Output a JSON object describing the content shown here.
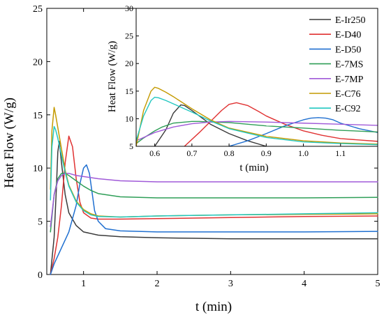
{
  "chart_data": {
    "type": "line",
    "xlabel": "t (min)",
    "ylabel": "Heat Flow (W/g)",
    "xlim": [
      0.5,
      5
    ],
    "ylim": [
      0,
      25
    ],
    "xticks": [
      1,
      2,
      3,
      4,
      5
    ],
    "yticks": [
      0,
      5,
      10,
      15,
      20,
      25
    ],
    "legend": "inside inset, top-right",
    "grid": false,
    "series": [
      {
        "name": "E-Ir250",
        "color": "#3a3a3a",
        "x": [
          0.55,
          0.6,
          0.63,
          0.65,
          0.67,
          0.7,
          0.75,
          0.8,
          0.9,
          1.0,
          1.2,
          1.5,
          2,
          2.5,
          3,
          3.5,
          4,
          4.5,
          5
        ],
        "y": [
          0,
          3.5,
          8,
          11.5,
          12.5,
          10.5,
          7.5,
          5.8,
          4.6,
          4.0,
          3.7,
          3.55,
          3.45,
          3.4,
          3.35,
          3.35,
          3.35,
          3.35,
          3.35
        ]
      },
      {
        "name": "E-D40",
        "color": "#e03232",
        "x": [
          0.55,
          0.6,
          0.65,
          0.7,
          0.75,
          0.8,
          0.85,
          0.9,
          0.95,
          1.0,
          1.1,
          1.2,
          1.5,
          2,
          3,
          4,
          5
        ],
        "y": [
          0,
          1.5,
          3.5,
          6.5,
          10.5,
          13.0,
          12.0,
          9.0,
          6.8,
          5.8,
          5.3,
          5.2,
          5.2,
          5.25,
          5.35,
          5.45,
          5.5
        ]
      },
      {
        "name": "E-D50",
        "color": "#1f6fd0",
        "x": [
          0.55,
          0.6,
          0.7,
          0.8,
          0.9,
          0.95,
          1.0,
          1.04,
          1.08,
          1.12,
          1.15,
          1.2,
          1.3,
          1.5,
          2,
          3,
          4,
          5
        ],
        "y": [
          0,
          1.0,
          2.5,
          4.0,
          6.5,
          8.5,
          10.0,
          10.3,
          9.5,
          7.5,
          6.0,
          5.0,
          4.3,
          4.1,
          4.0,
          4.0,
          4.0,
          4.05
        ]
      },
      {
        "name": "E-7MS",
        "color": "#2e9e57",
        "x": [
          0.55,
          0.6,
          0.65,
          0.7,
          0.75,
          0.8,
          0.9,
          1.0,
          1.1,
          1.2,
          1.5,
          2,
          3,
          4,
          5
        ],
        "y": [
          4.0,
          7.5,
          9.0,
          9.5,
          9.5,
          9.3,
          8.8,
          8.3,
          7.9,
          7.6,
          7.3,
          7.2,
          7.2,
          7.2,
          7.25
        ]
      },
      {
        "name": "E-7MP",
        "color": "#a05ad8",
        "x": [
          0.55,
          0.6,
          0.65,
          0.7,
          0.75,
          0.8,
          0.9,
          1.0,
          1.2,
          1.5,
          2,
          3,
          4,
          5
        ],
        "y": [
          4.5,
          7.5,
          8.8,
          9.3,
          9.5,
          9.5,
          9.3,
          9.2,
          9.0,
          8.8,
          8.7,
          8.7,
          8.7,
          8.7
        ]
      },
      {
        "name": "E-C76",
        "color": "#c49a00",
        "x": [
          0.55,
          0.57,
          0.6,
          0.62,
          0.65,
          0.7,
          0.75,
          0.8,
          0.9,
          1.0,
          1.1,
          1.2,
          1.5,
          2,
          3,
          4,
          5
        ],
        "y": [
          8.0,
          13.5,
          15.7,
          15.0,
          13.8,
          11.8,
          9.8,
          8.4,
          6.9,
          6.1,
          5.7,
          5.5,
          5.4,
          5.5,
          5.6,
          5.65,
          5.7
        ]
      },
      {
        "name": "E-C92",
        "color": "#22c7c0",
        "x": [
          0.55,
          0.57,
          0.6,
          0.62,
          0.65,
          0.7,
          0.75,
          0.8,
          0.9,
          1.0,
          1.1,
          1.2,
          1.5,
          2,
          3,
          4,
          5
        ],
        "y": [
          7.0,
          12.0,
          13.9,
          13.6,
          12.8,
          11.2,
          9.6,
          8.3,
          6.8,
          6.0,
          5.6,
          5.45,
          5.4,
          5.5,
          5.6,
          5.7,
          5.8
        ]
      }
    ],
    "inset": {
      "xlabel": "t (min)",
      "ylabel": "Heat Flow (W/g)",
      "xlim": [
        0.55,
        1.2
      ],
      "ylim": [
        5,
        30
      ],
      "xticks": [
        0.6,
        0.7,
        0.8,
        0.9,
        1.0,
        1.1
      ],
      "xtick_labels": [
        "0.6",
        "0.7",
        "0.8",
        "0.9",
        "1.0",
        "1.1"
      ],
      "yticks": [
        5,
        10,
        15,
        20,
        25,
        30
      ],
      "series": [
        {
          "name": "E-Ir250",
          "color": "#3a3a3a",
          "x": [
            0.6,
            0.63,
            0.65,
            0.67,
            0.68,
            0.7,
            0.75,
            0.8,
            0.85,
            0.9
          ],
          "y": [
            5,
            8,
            11,
            12.5,
            12.4,
            11.5,
            9.0,
            7.3,
            6.0,
            5.0
          ]
        },
        {
          "name": "E-D40",
          "color": "#e03232",
          "x": [
            0.68,
            0.72,
            0.75,
            0.78,
            0.8,
            0.82,
            0.85,
            0.88,
            0.9,
            0.95,
            1.0,
            1.05,
            1.1,
            1.2
          ],
          "y": [
            5,
            7.5,
            9.5,
            11.5,
            12.6,
            12.9,
            12.4,
            11.3,
            10.5,
            9.0,
            7.8,
            7.0,
            6.4,
            5.9
          ]
        },
        {
          "name": "E-D50",
          "color": "#1f6fd0",
          "x": [
            0.8,
            0.85,
            0.9,
            0.95,
            1.0,
            1.02,
            1.04,
            1.06,
            1.08,
            1.1,
            1.15,
            1.2
          ],
          "y": [
            5,
            6.0,
            7.3,
            8.7,
            9.8,
            10.1,
            10.2,
            10.1,
            9.8,
            9.2,
            8.2,
            7.5
          ]
        },
        {
          "name": "E-7MS",
          "color": "#2e9e57",
          "x": [
            0.55,
            0.57,
            0.6,
            0.62,
            0.65,
            0.7,
            0.72,
            0.75,
            0.8,
            0.9,
            1.0,
            1.1,
            1.2
          ],
          "y": [
            5.5,
            6.5,
            7.8,
            8.5,
            9.2,
            9.5,
            9.5,
            9.4,
            9.3,
            8.7,
            8.3,
            7.9,
            7.6
          ]
        },
        {
          "name": "E-7MP",
          "color": "#a05ad8",
          "x": [
            0.55,
            0.6,
            0.65,
            0.7,
            0.75,
            0.8,
            0.9,
            1.0,
            1.1,
            1.2
          ],
          "y": [
            6.0,
            7.5,
            8.5,
            9.1,
            9.4,
            9.5,
            9.4,
            9.2,
            9.0,
            8.8
          ]
        },
        {
          "name": "E-C76",
          "color": "#c49a00",
          "x": [
            0.55,
            0.57,
            0.59,
            0.6,
            0.61,
            0.63,
            0.65,
            0.7,
            0.75,
            0.8,
            0.9,
            1.0,
            1.1,
            1.2
          ],
          "y": [
            5,
            11.5,
            15.0,
            15.7,
            15.5,
            14.8,
            14.0,
            11.8,
            9.8,
            8.3,
            6.8,
            6.0,
            5.6,
            5.4
          ]
        },
        {
          "name": "E-C92",
          "color": "#22c7c0",
          "x": [
            0.55,
            0.57,
            0.59,
            0.6,
            0.61,
            0.63,
            0.65,
            0.7,
            0.75,
            0.8,
            0.9,
            1.0,
            1.1,
            1.2
          ],
          "y": [
            6,
            10.5,
            13.3,
            13.9,
            13.8,
            13.3,
            12.7,
            11.2,
            9.6,
            8.2,
            6.6,
            5.8,
            5.5,
            5.3
          ]
        }
      ]
    }
  }
}
